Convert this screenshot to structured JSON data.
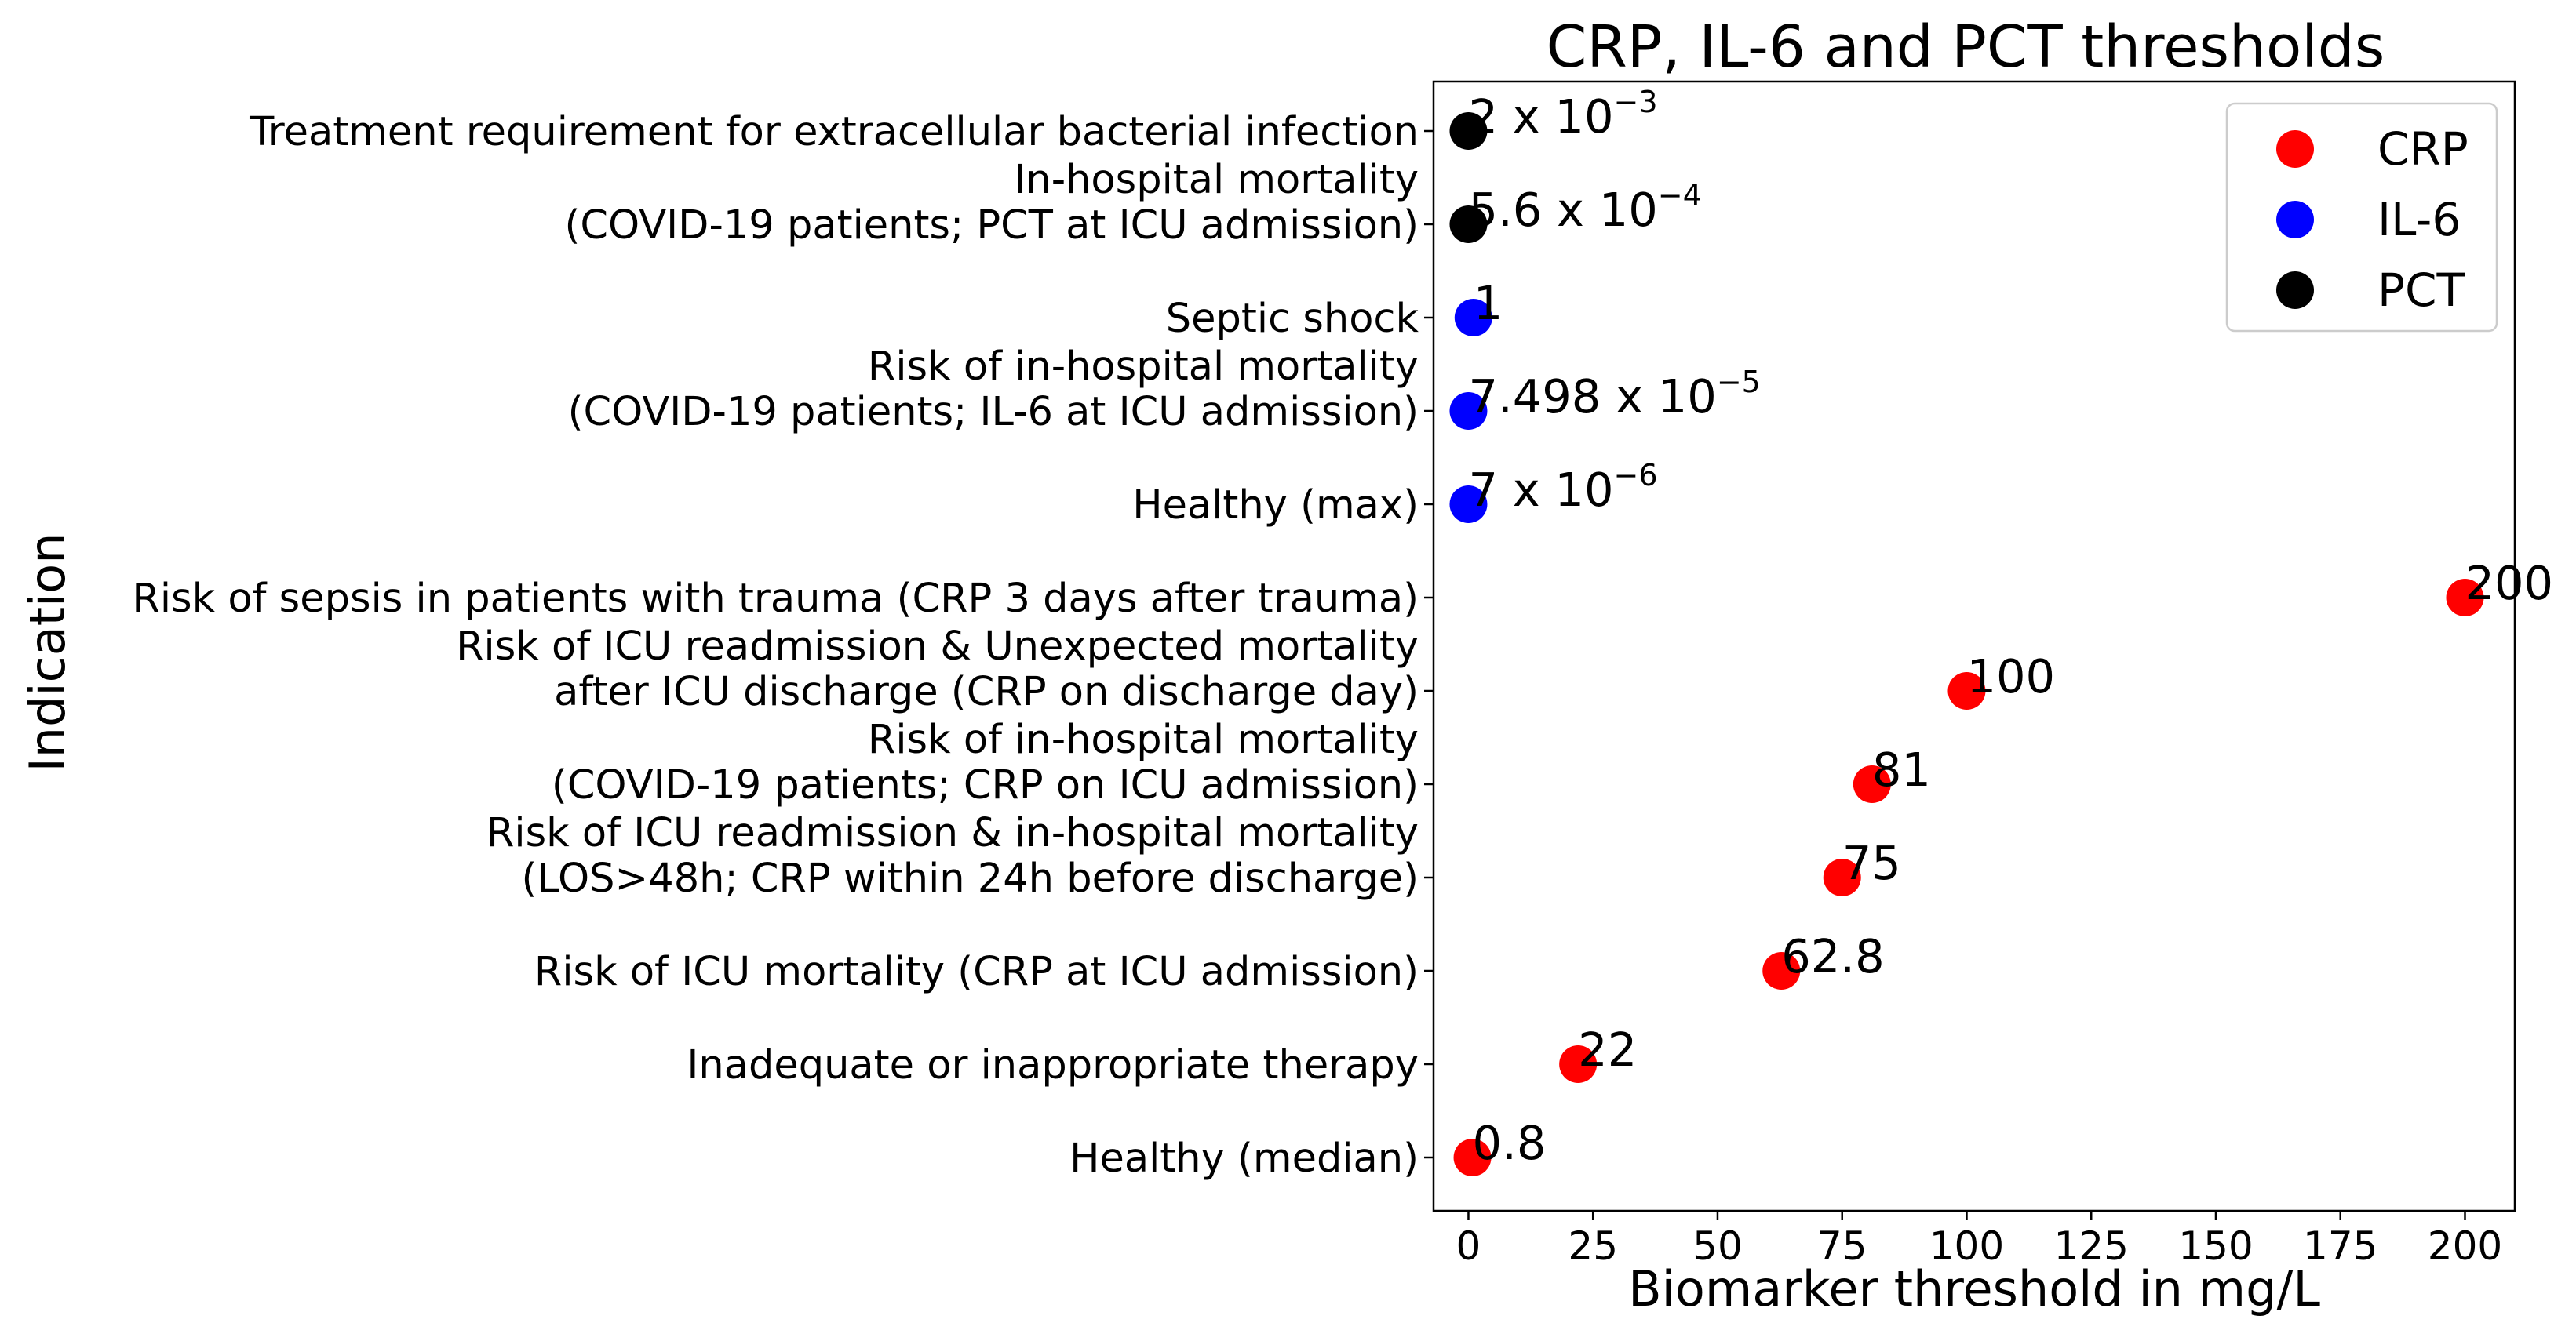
{
  "chart_data": {
    "type": "scatter",
    "title": "CRP, IL-6 and PCT thresholds",
    "xlabel": "Biomarker threshold in mg/L",
    "ylabel": "Indication",
    "xlim": [
      -7,
      210
    ],
    "xticks": [
      0,
      25,
      50,
      75,
      100,
      125,
      150,
      175,
      200
    ],
    "grid": false,
    "legend_position": "top-right",
    "categories": [
      {
        "lines": [
          "Healthy (median)"
        ]
      },
      {
        "lines": [
          "Inadequate or inappropriate therapy"
        ]
      },
      {
        "lines": [
          "Risk of ICU mortality (CRP at ICU admission)"
        ]
      },
      {
        "lines": [
          "Risk of ICU readmission & in-hospital mortality",
          "(LOS>48h; CRP within 24h before discharge)"
        ]
      },
      {
        "lines": [
          "Risk of in-hospital mortality",
          "(COVID-19 patients; CRP on ICU admission)"
        ]
      },
      {
        "lines": [
          "Risk of ICU readmission & Unexpected mortality",
          "after ICU discharge (CRP on discharge day)"
        ]
      },
      {
        "lines": [
          "Risk of sepsis in patients with trauma (CRP 3 days after trauma)"
        ]
      },
      {
        "lines": [
          "Healthy (max)"
        ]
      },
      {
        "lines": [
          "Risk of in-hospital mortality",
          "(COVID-19 patients; IL-6 at ICU admission)"
        ]
      },
      {
        "lines": [
          "Septic shock"
        ]
      },
      {
        "lines": [
          "In-hospital mortality",
          "(COVID-19 patients; PCT at ICU admission)"
        ]
      },
      {
        "lines": [
          "Treatment requirement for extracellular bacterial infection"
        ]
      }
    ],
    "series": [
      {
        "name": "CRP",
        "color": "#ff0000",
        "points": [
          {
            "category": 0,
            "x": 0.8,
            "label": "0.8"
          },
          {
            "category": 1,
            "x": 22,
            "label": "22"
          },
          {
            "category": 2,
            "x": 62.8,
            "label": "62.8"
          },
          {
            "category": 3,
            "x": 75,
            "label": "75"
          },
          {
            "category": 4,
            "x": 81,
            "label": "81"
          },
          {
            "category": 5,
            "x": 100,
            "label": "100"
          },
          {
            "category": 6,
            "x": 200,
            "label": "200"
          }
        ]
      },
      {
        "name": "IL-6",
        "color": "#0000ff",
        "points": [
          {
            "category": 7,
            "x": 7e-06,
            "label": "7 x 10",
            "exp": "−6"
          },
          {
            "category": 8,
            "x": 7.498e-05,
            "label": "7.498 x 10",
            "exp": "−5"
          },
          {
            "category": 9,
            "x": 1,
            "label": "1"
          }
        ]
      },
      {
        "name": "PCT",
        "color": "#000000",
        "points": [
          {
            "category": 10,
            "x": 0.00056,
            "label": "5.6 x 10",
            "exp": "−4"
          },
          {
            "category": 11,
            "x": 0.002,
            "label": "2 x 10",
            "exp": "−3"
          }
        ]
      }
    ]
  }
}
